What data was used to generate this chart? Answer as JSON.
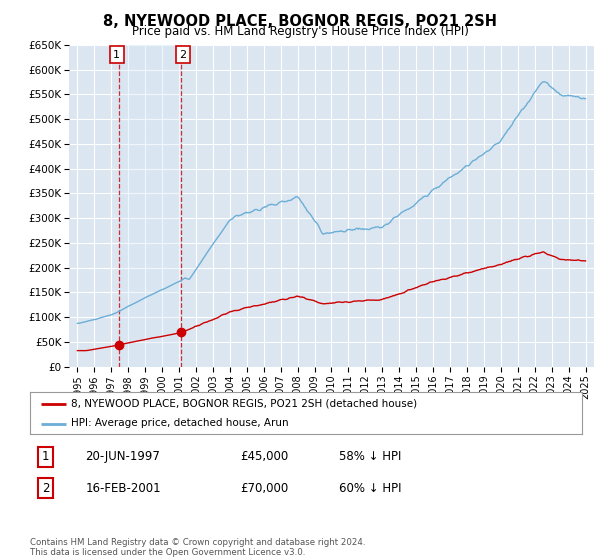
{
  "title": "8, NYEWOOD PLACE, BOGNOR REGIS, PO21 2SH",
  "subtitle": "Price paid vs. HM Land Registry's House Price Index (HPI)",
  "ylabel_ticks": [
    "£0",
    "£50K",
    "£100K",
    "£150K",
    "£200K",
    "£250K",
    "£300K",
    "£350K",
    "£400K",
    "£450K",
    "£500K",
    "£550K",
    "£600K",
    "£650K"
  ],
  "ytick_values": [
    0,
    50000,
    100000,
    150000,
    200000,
    250000,
    300000,
    350000,
    400000,
    450000,
    500000,
    550000,
    600000,
    650000
  ],
  "xlim_start": 1994.5,
  "xlim_end": 2025.5,
  "ylim_min": 0,
  "ylim_max": 650000,
  "sale1_year": 1997.47,
  "sale1_price": 45000,
  "sale2_year": 2001.13,
  "sale2_price": 70000,
  "legend_line1": "8, NYEWOOD PLACE, BOGNOR REGIS, PO21 2SH (detached house)",
  "legend_line2": "HPI: Average price, detached house, Arun",
  "table_row1": [
    "1",
    "20-JUN-1997",
    "£45,000",
    "58% ↓ HPI"
  ],
  "table_row2": [
    "2",
    "16-FEB-2001",
    "£70,000",
    "60% ↓ HPI"
  ],
  "footer": "Contains HM Land Registry data © Crown copyright and database right 2024.\nThis data is licensed under the Open Government Licence v3.0.",
  "hpi_color": "#6baed6",
  "hpi_shade_color": "#d6e8f5",
  "sale_color": "#cc0000",
  "bg_color": "#dce6f1",
  "plot_bg": "#ffffff",
  "grid_color": "#ffffff"
}
